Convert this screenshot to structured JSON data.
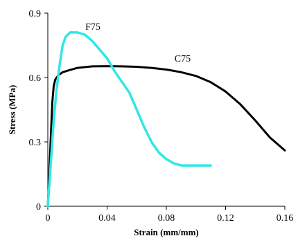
{
  "chart_data": {
    "type": "line",
    "title": "",
    "xlabel": "Strain (mm/mm)",
    "ylabel": "Stress (MPa)",
    "xlim": [
      0,
      0.16
    ],
    "ylim": [
      0,
      0.9
    ],
    "x_ticks": [
      "0",
      "0.04",
      "0.08",
      "0.12",
      "0.16"
    ],
    "y_ticks": [
      "0",
      "0.3",
      "0.6",
      "0.9"
    ],
    "grid": false,
    "series": [
      {
        "name": "C75",
        "color": "#000000",
        "x": [
          0,
          0.001,
          0.002,
          0.003,
          0.004,
          0.005,
          0.007,
          0.01,
          0.015,
          0.02,
          0.03,
          0.04,
          0.05,
          0.06,
          0.07,
          0.08,
          0.09,
          0.1,
          0.11,
          0.12,
          0.13,
          0.14,
          0.15,
          0.16
        ],
        "y": [
          0,
          0.15,
          0.32,
          0.48,
          0.56,
          0.59,
          0.61,
          0.625,
          0.635,
          0.645,
          0.652,
          0.653,
          0.652,
          0.65,
          0.645,
          0.637,
          0.625,
          0.607,
          0.578,
          0.535,
          0.475,
          0.4,
          0.32,
          0.26
        ]
      },
      {
        "name": "F75",
        "color": "#33e6e6",
        "x": [
          0,
          0.002,
          0.004,
          0.006,
          0.008,
          0.01,
          0.012,
          0.015,
          0.02,
          0.025,
          0.03,
          0.035,
          0.04,
          0.045,
          0.05,
          0.055,
          0.06,
          0.065,
          0.07,
          0.075,
          0.08,
          0.085,
          0.09,
          0.095,
          0.1,
          0.11
        ],
        "y": [
          0,
          0.2,
          0.4,
          0.55,
          0.66,
          0.75,
          0.79,
          0.81,
          0.81,
          0.8,
          0.77,
          0.73,
          0.69,
          0.63,
          0.58,
          0.53,
          0.45,
          0.37,
          0.3,
          0.25,
          0.22,
          0.2,
          0.19,
          0.19,
          0.19,
          0.19
        ]
      }
    ]
  }
}
